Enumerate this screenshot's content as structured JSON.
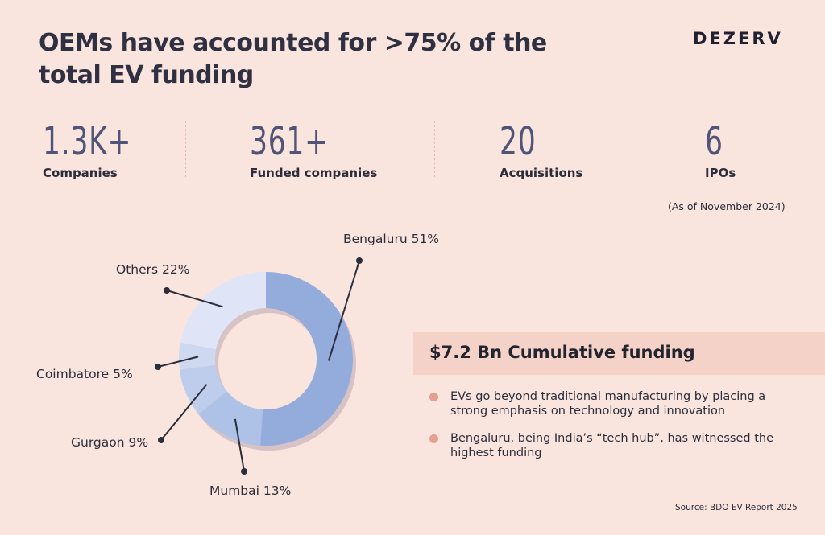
{
  "header": {
    "title": "OEMs have accounted for >75% of the total EV funding",
    "brand": "DEZERV"
  },
  "stats": [
    {
      "value": "1.3K+",
      "label": "Companies"
    },
    {
      "value": "361+",
      "label": "Funded companies"
    },
    {
      "value": "20",
      "label": "Acquisitions"
    },
    {
      "value": "6",
      "label": "IPOs"
    }
  ],
  "as_of": "(As of November 2024)",
  "chart_data": {
    "type": "pie",
    "style": "donut",
    "categories": [
      "Bengaluru",
      "Mumbai",
      "Gurgaon",
      "Coimbatore",
      "Others"
    ],
    "values": [
      51,
      13,
      9,
      5,
      22
    ],
    "labels": [
      "Bengaluru 51%",
      "Mumbai 13%",
      "Gurgaon 9%",
      "Coimbatore 5%",
      "Others 22%"
    ],
    "colors": [
      "#93acdc",
      "#aec1e6",
      "#bfcdec",
      "#cdd8f1",
      "#dfe5f6"
    ],
    "legend": "none"
  },
  "funding": {
    "title": "$7.2 Bn Cumulative funding",
    "bullets": [
      "EVs go beyond traditional manufacturing by placing a strong emphasis on technology and innovation",
      "Bengaluru, being India’s “tech hub”, has witnessed the highest funding"
    ]
  },
  "source": "Source: BDO EV Report 2025",
  "colors": {
    "background": "#f9e4de",
    "stat_value": "#4f5478",
    "funding_band": "#f5d2c7",
    "bullet_dot": "#e5a18f"
  }
}
